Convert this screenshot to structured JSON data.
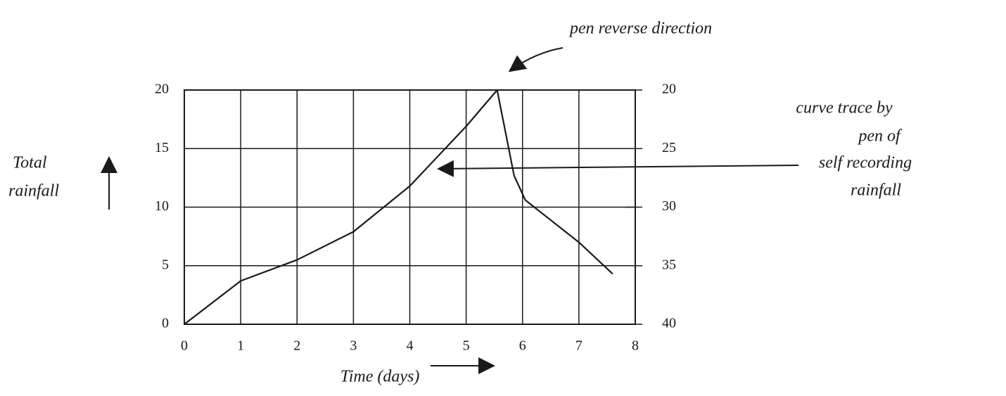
{
  "chart_data": {
    "type": "line",
    "annotations": [
      "pen reverse direction",
      "curve trace by",
      "pen of",
      "self recording",
      "rainfall"
    ],
    "ylabel": [
      "Total",
      "rainfall"
    ],
    "xlabel": "Time (days)",
    "x": [
      0,
      1,
      2,
      3,
      4,
      5,
      5.55,
      5.85,
      6.05,
      7,
      7.6
    ],
    "values": [
      0,
      3.7,
      5.5,
      7.9,
      11.8,
      16.9,
      20,
      12.7,
      10.6,
      7.0,
      4.3
    ],
    "color": "#1a1a1a",
    "xlim": [
      0,
      8
    ],
    "xticks": [
      0,
      1,
      2,
      3,
      4,
      5,
      6,
      7,
      8
    ],
    "ylim": [
      0,
      20
    ],
    "yticks": [
      0,
      5,
      10,
      15,
      20
    ],
    "y2lim": [
      20,
      40
    ],
    "y2ticks": [
      20,
      25,
      30,
      35,
      40
    ],
    "grid": true
  }
}
